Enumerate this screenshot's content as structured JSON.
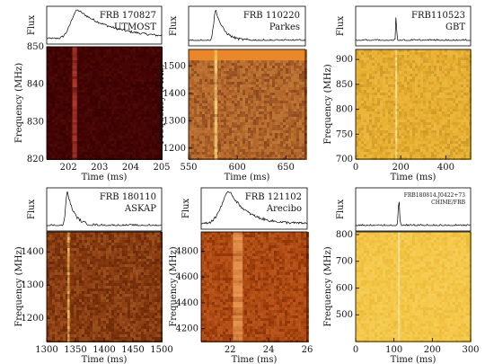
{
  "chart_data": [
    {
      "type": "heatmap",
      "frb": "FRB 170827",
      "telescope": "UTMOST",
      "flux_label": "Flux",
      "xlabel": "Time (ms)",
      "ylabel": "Frequency (MHz)",
      "xlim": [
        201.3,
        205
      ],
      "ylim": [
        820,
        850
      ],
      "xticks": [
        202,
        203,
        204,
        205
      ],
      "yticks": [
        820,
        830,
        840,
        850
      ],
      "colors": {
        "base": "#3a0000",
        "signal": "#b23a2a",
        "noise": "#4a0606"
      },
      "burst_time": 202.2,
      "burst_width": 0.15,
      "pulse_profile": {
        "peak": 202.3,
        "width": 0.3,
        "tail": 1.2
      },
      "bands": []
    },
    {
      "type": "heatmap",
      "frb": "FRB 110220",
      "telescope": "Parkes",
      "flux_label": "Flux",
      "xlabel": "Time (ms)",
      "ylabel": "Frequency (MHz)",
      "xlim": [
        550,
        670
      ],
      "ylim": [
        1160,
        1560
      ],
      "xticks": [
        550,
        600,
        650
      ],
      "yticks": [
        1200,
        1300,
        1400,
        1500
      ],
      "colors": {
        "base": "#b5672a",
        "signal": "#f4d07a",
        "noise": "#8a4a20"
      },
      "burst_time": 578,
      "burst_width": 3,
      "pulse_profile": {
        "peak": 578,
        "width": 3,
        "tail": 8
      },
      "bands": [
        {
          "ymin": 1520,
          "ymax": 1560,
          "color": "#e8882a"
        }
      ]
    },
    {
      "type": "heatmap",
      "frb": "FRB110523",
      "telescope": "GBT",
      "flux_label": "Flux",
      "xlabel": "Time (ms)",
      "ylabel": "Frequency (MHz)",
      "xlim": [
        0,
        510
      ],
      "ylim": [
        700,
        920
      ],
      "xticks": [
        0,
        200,
        400
      ],
      "yticks": [
        700,
        750,
        800,
        850,
        900
      ],
      "colors": {
        "base": "#e8b030",
        "signal": "#f9e49a",
        "noise": "#d09a28"
      },
      "burst_time": 180,
      "burst_width": 3,
      "pulse_profile": {
        "peak": 180,
        "width": 3,
        "tail": 2
      },
      "bands": []
    },
    {
      "type": "heatmap",
      "frb": "FRB 180110",
      "telescope": "ASKAP",
      "flux_label": "Flux",
      "xlabel": "Time (ms)",
      "ylabel": "Frequency (MHz)",
      "xlim": [
        1300,
        1500
      ],
      "ylim": [
        1130,
        1460
      ],
      "xticks": [
        1300,
        1350,
        1400,
        1450,
        1500
      ],
      "yticks": [
        1200,
        1300,
        1400
      ],
      "colors": {
        "base": "#8a3a10",
        "signal": "#f2c060",
        "noise": "#6a2a08"
      },
      "burst_time": 1338,
      "burst_width": 4,
      "pulse_profile": {
        "peak": 1336,
        "width": 4,
        "tail": 12
      },
      "bands": []
    },
    {
      "type": "heatmap",
      "frb": "FRB 121102",
      "telescope": "Arecibo",
      "flux_label": "Flux",
      "xlabel": "Time (ms)",
      "ylabel": "Frequency (MHz)",
      "xlim": [
        20.5,
        26
      ],
      "ylim": [
        4100,
        4950
      ],
      "xticks": [
        22,
        24,
        26
      ],
      "yticks": [
        4200,
        4400,
        4600,
        4800
      ],
      "colors": {
        "base": "#b04a12",
        "signal": "#e99a55",
        "noise": "#8e3408"
      },
      "burst_time": 22.4,
      "burst_width": 0.5,
      "pulse_profile": {
        "peak": 22.0,
        "width": 0.6,
        "tail": 0.9
      },
      "bands": []
    },
    {
      "type": "heatmap",
      "frb": "FRB180814.J0422+73",
      "telescope": "CHIME/FRB",
      "flux_label": "Flux",
      "xlabel": "Time (ms)",
      "ylabel": "Frequency (MHz)",
      "xlim": [
        0,
        300
      ],
      "ylim": [
        400,
        810
      ],
      "xticks": [
        0,
        100,
        200,
        300
      ],
      "yticks": [
        500,
        600,
        700,
        800
      ],
      "colors": {
        "base": "#f4c848",
        "signal": "#fbe6a2",
        "noise": "#eebb3c"
      },
      "burst_time": 113,
      "burst_width": 2,
      "pulse_profile": {
        "peak": 113,
        "width": 2,
        "tail": 1.5
      },
      "bands": []
    }
  ]
}
